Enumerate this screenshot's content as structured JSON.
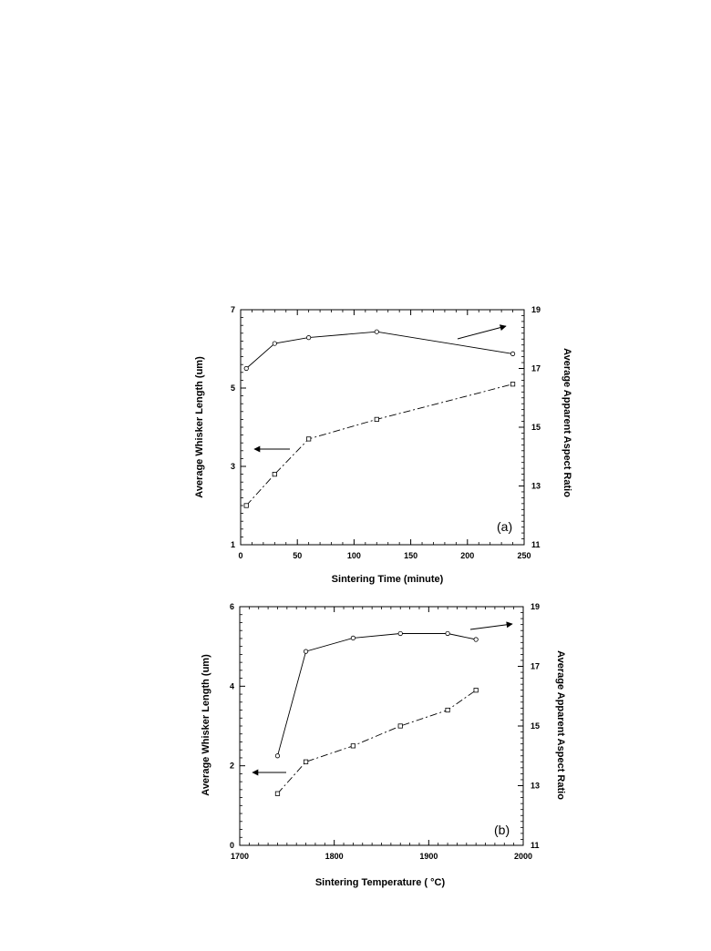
{
  "chart_data": [
    {
      "type": "line",
      "panel_label": "(a)",
      "xlabel": "Sintering Time (minute)",
      "ylabel_left": "Average Whisker Length (um)",
      "ylabel_right": "Average Apparent Aspect Ratio",
      "xlim": [
        0,
        250
      ],
      "ylim_left": [
        1,
        7
      ],
      "ylim_right": [
        11,
        19
      ],
      "xticks": [
        "0",
        "50",
        "100",
        "150",
        "200",
        "250"
      ],
      "yticks_left": [
        "1",
        "3",
        "5",
        "7"
      ],
      "yticks_right": [
        "11",
        "13",
        "15",
        "17",
        "19"
      ],
      "series": [
        {
          "axis": "right",
          "marker": "circle",
          "line_style": "solid",
          "x": [
            5,
            30,
            60,
            120,
            240
          ],
          "y": [
            17.0,
            17.85,
            18.05,
            18.25,
            17.5
          ]
        },
        {
          "axis": "left",
          "marker": "square",
          "line_style": "dash-dot",
          "x": [
            5,
            30,
            60,
            120,
            240
          ],
          "y": [
            2.0,
            2.8,
            3.7,
            4.2,
            5.1
          ]
        }
      ],
      "arrows": [
        {
          "direction": "right",
          "axis": "right"
        },
        {
          "direction": "left",
          "axis": "left"
        }
      ]
    },
    {
      "type": "line",
      "panel_label": "(b)",
      "xlabel": "Sintering Temperature ( °C)",
      "ylabel_left": "Average Whisker Length (um)",
      "ylabel_right": "Average Apparent Aspect Ratio",
      "xlim": [
        1700,
        2000
      ],
      "ylim_left": [
        0,
        6
      ],
      "ylim_right": [
        11,
        19
      ],
      "xticks": [
        "1700",
        "1800",
        "1900",
        "2000"
      ],
      "yticks_left": [
        "0",
        "2",
        "4",
        "6"
      ],
      "yticks_right": [
        "11",
        "13",
        "15",
        "17",
        "19"
      ],
      "series": [
        {
          "axis": "right",
          "marker": "circle",
          "line_style": "solid",
          "x": [
            1740,
            1770,
            1820,
            1870,
            1920,
            1950
          ],
          "y": [
            14.0,
            17.5,
            17.95,
            18.1,
            18.1,
            17.9
          ]
        },
        {
          "axis": "left",
          "marker": "square",
          "line_style": "dash-dot",
          "x": [
            1740,
            1770,
            1820,
            1870,
            1920,
            1950
          ],
          "y": [
            1.3,
            2.1,
            2.5,
            3.0,
            3.4,
            3.9
          ]
        }
      ],
      "arrows": [
        {
          "direction": "right",
          "axis": "right"
        },
        {
          "direction": "left",
          "axis": "left"
        }
      ]
    }
  ]
}
